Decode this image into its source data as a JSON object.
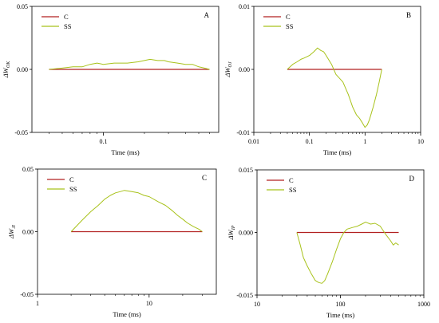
{
  "colors": {
    "C": "#b22222",
    "SS": "#a8c21a",
    "axis": "#000000",
    "background": "#ffffff"
  },
  "chart_data": [
    {
      "id": "A",
      "type": "line",
      "panel_label": "A",
      "xlabel": "Time (ms)",
      "ylabel_main": "ΔW",
      "ylabel_sub": "OK",
      "xscale": "log",
      "xlim": [
        0.03,
        0.7
      ],
      "ylim": [
        -0.05,
        0.05
      ],
      "xticks": [
        {
          "v": 0.1,
          "label": "0.1"
        }
      ],
      "yticks": [
        {
          "v": 0.05,
          "label": "0.05"
        },
        {
          "v": 0.0,
          "label": "0.00"
        },
        {
          "v": -0.05,
          "label": "-0.05"
        }
      ],
      "legend_position": "top-left",
      "series": [
        {
          "name": "C",
          "color_key": "C",
          "x": [
            0.04,
            0.6
          ],
          "y": [
            0,
            0
          ]
        },
        {
          "name": "SS",
          "color_key": "SS",
          "x": [
            0.04,
            0.05,
            0.06,
            0.07,
            0.08,
            0.09,
            0.1,
            0.12,
            0.15,
            0.18,
            0.2,
            0.22,
            0.25,
            0.28,
            0.3,
            0.35,
            0.4,
            0.45,
            0.5,
            0.55,
            0.6
          ],
          "y": [
            0.0,
            0.001,
            0.002,
            0.002,
            0.004,
            0.005,
            0.004,
            0.005,
            0.005,
            0.006,
            0.007,
            0.008,
            0.007,
            0.007,
            0.006,
            0.005,
            0.004,
            0.004,
            0.002,
            0.001,
            0.0
          ]
        }
      ]
    },
    {
      "id": "B",
      "type": "line",
      "panel_label": "B",
      "xlabel": "Time (ms)",
      "ylabel_main": "ΔW",
      "ylabel_sub": "OJ",
      "xscale": "log",
      "xlim": [
        0.01,
        10
      ],
      "ylim": [
        -0.01,
        0.01
      ],
      "xticks": [
        {
          "v": 0.01,
          "label": "0.01"
        },
        {
          "v": 0.1,
          "label": "0.1"
        },
        {
          "v": 1,
          "label": "1"
        },
        {
          "v": 10,
          "label": "10"
        }
      ],
      "yticks": [
        {
          "v": 0.01,
          "label": "0.01"
        },
        {
          "v": 0.0,
          "label": "0.00"
        },
        {
          "v": -0.01,
          "label": "-0.01"
        }
      ],
      "legend_position": "top-left",
      "series": [
        {
          "name": "C",
          "color_key": "C",
          "x": [
            0.04,
            2.0
          ],
          "y": [
            0,
            0
          ]
        },
        {
          "name": "SS",
          "color_key": "SS",
          "x": [
            0.04,
            0.05,
            0.06,
            0.07,
            0.08,
            0.1,
            0.12,
            0.14,
            0.16,
            0.18,
            0.2,
            0.25,
            0.3,
            0.4,
            0.5,
            0.6,
            0.7,
            0.8,
            0.9,
            1.0,
            1.1,
            1.2,
            1.4,
            1.6,
            1.8,
            2.0
          ],
          "y": [
            0.0,
            0.0008,
            0.0012,
            0.0016,
            0.0018,
            0.0022,
            0.0028,
            0.0034,
            0.003,
            0.0028,
            0.0022,
            0.0008,
            -0.0008,
            -0.002,
            -0.004,
            -0.006,
            -0.0072,
            -0.0078,
            -0.0085,
            -0.0092,
            -0.0088,
            -0.008,
            -0.006,
            -0.004,
            -0.002,
            0.0
          ]
        }
      ]
    },
    {
      "id": "C",
      "type": "line",
      "panel_label": "C",
      "xlabel": "Time (ms)",
      "ylabel_main": "ΔW",
      "ylabel_sub": "JI",
      "xscale": "log",
      "xlim": [
        1,
        40
      ],
      "ylim": [
        -0.05,
        0.05
      ],
      "xticks": [
        {
          "v": 1,
          "label": "1"
        },
        {
          "v": 10,
          "label": "10"
        }
      ],
      "yticks": [
        {
          "v": 0.05,
          "label": "0.05"
        },
        {
          "v": 0.0,
          "label": "0.00"
        },
        {
          "v": -0.05,
          "label": "-0.05"
        }
      ],
      "legend_position": "top-left",
      "series": [
        {
          "name": "C",
          "color_key": "C",
          "x": [
            2,
            30
          ],
          "y": [
            0,
            0
          ]
        },
        {
          "name": "SS",
          "color_key": "SS",
          "x": [
            2,
            2.5,
            3,
            3.5,
            4,
            4.5,
            5,
            5.5,
            6,
            7,
            8,
            9,
            10,
            12,
            14,
            16,
            18,
            20,
            22,
            25,
            28,
            30
          ],
          "y": [
            0.0,
            0.009,
            0.016,
            0.021,
            0.026,
            0.029,
            0.031,
            0.032,
            0.033,
            0.032,
            0.031,
            0.029,
            0.028,
            0.024,
            0.021,
            0.017,
            0.013,
            0.01,
            0.007,
            0.004,
            0.002,
            0.0
          ]
        }
      ]
    },
    {
      "id": "D",
      "type": "line",
      "panel_label": "D",
      "xlabel": "Time (ms)",
      "ylabel_main": "ΔW",
      "ylabel_sub": "IP",
      "xscale": "log",
      "xlim": [
        10,
        1000
      ],
      "ylim": [
        -0.015,
        0.015
      ],
      "xticks": [
        {
          "v": 10,
          "label": "10"
        },
        {
          "v": 100,
          "label": "100"
        },
        {
          "v": 1000,
          "label": "1000"
        }
      ],
      "yticks": [
        {
          "v": 0.015,
          "label": "0.015"
        },
        {
          "v": 0.0,
          "label": "0.000"
        },
        {
          "v": -0.015,
          "label": "-0.015"
        }
      ],
      "legend_position": "top-left",
      "series": [
        {
          "name": "C",
          "color_key": "C",
          "x": [
            30,
            500
          ],
          "y": [
            0,
            0
          ]
        },
        {
          "name": "SS",
          "color_key": "SS",
          "x": [
            30,
            33,
            36,
            40,
            45,
            50,
            55,
            60,
            65,
            70,
            80,
            90,
            100,
            110,
            120,
            140,
            160,
            180,
            200,
            230,
            260,
            300,
            350,
            400,
            430,
            460,
            500
          ],
          "y": [
            0.0,
            -0.003,
            -0.006,
            -0.008,
            -0.01,
            -0.0115,
            -0.012,
            -0.0122,
            -0.0115,
            -0.01,
            -0.007,
            -0.004,
            -0.0015,
            0.0,
            0.0008,
            0.0012,
            0.0015,
            0.002,
            0.0025,
            0.002,
            0.0022,
            0.0015,
            -0.0005,
            -0.002,
            -0.003,
            -0.0025,
            -0.003
          ]
        }
      ]
    }
  ]
}
